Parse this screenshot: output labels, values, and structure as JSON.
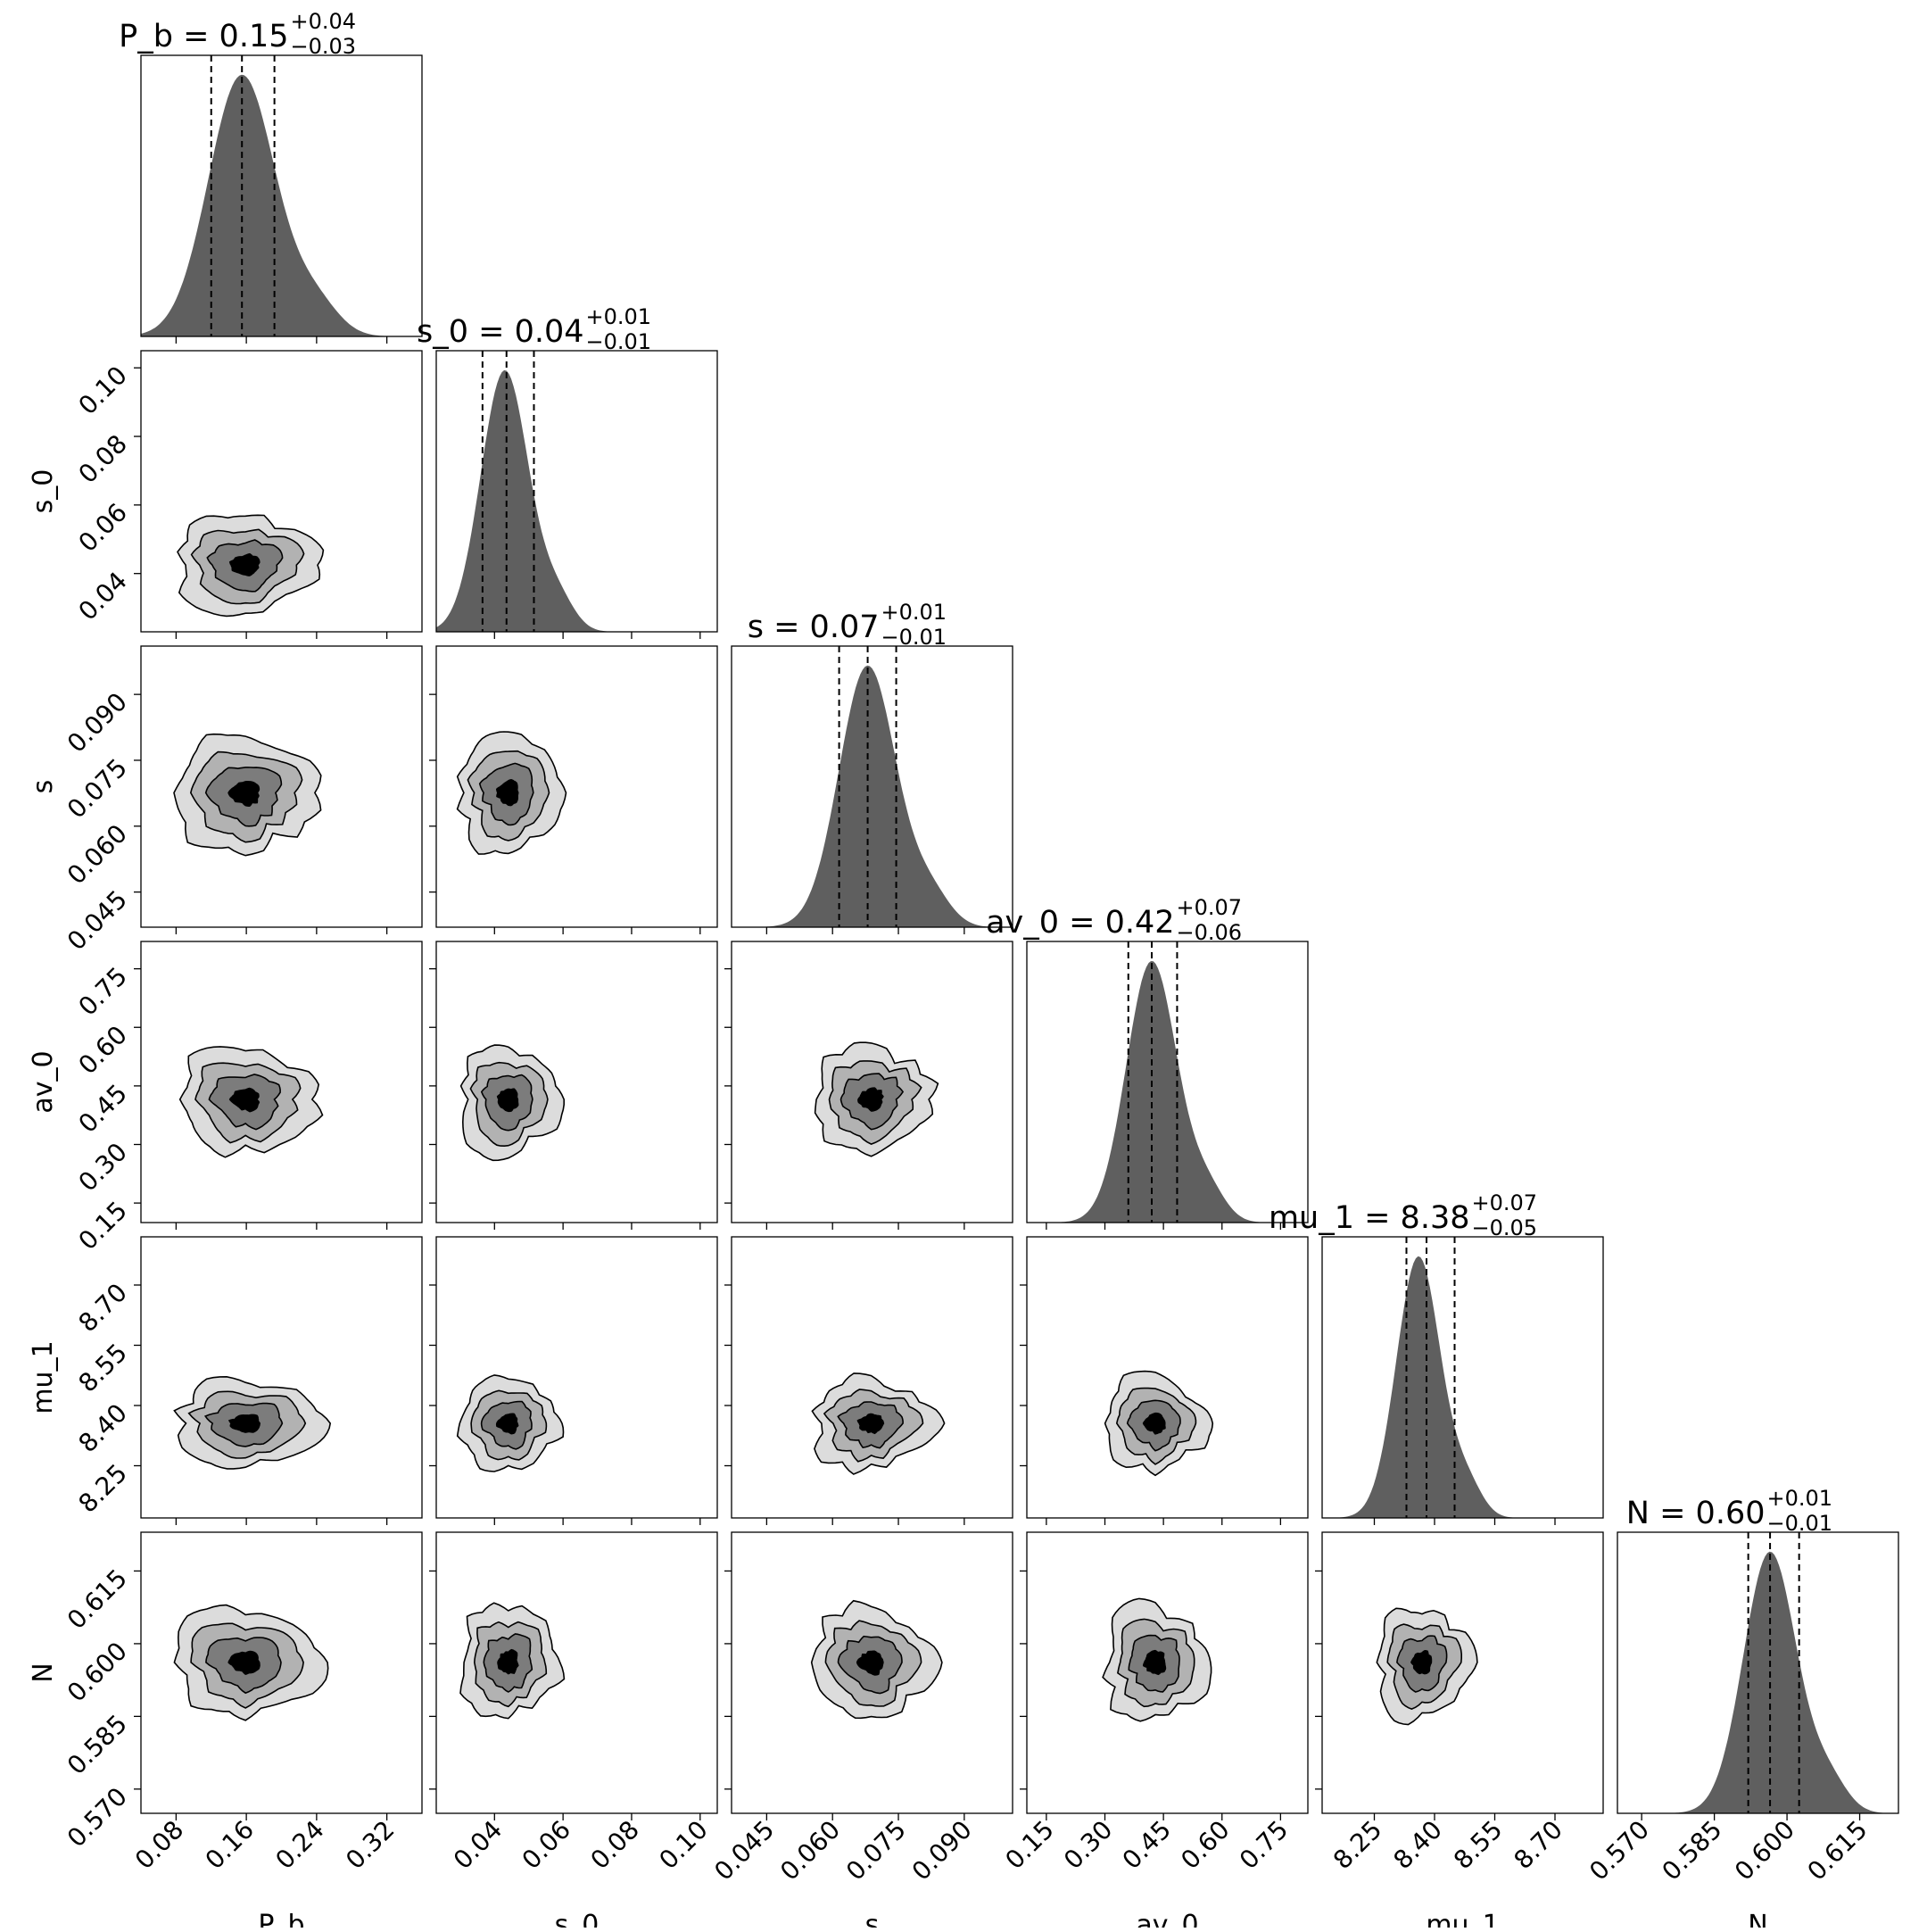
{
  "chart_data": {
    "type": "corner",
    "parameters": [
      {
        "name": "P_b",
        "axis_label": "P_b",
        "median": "0.15",
        "plus": "+0.04",
        "minus": "−0.03",
        "range": [
          0.04,
          0.36
        ],
        "ticks": [
          "0.08",
          "0.16",
          "0.24",
          "0.32"
        ],
        "hist_peak": 0.155,
        "hist_sigma": 0.038,
        "q16": 0.12,
        "q50": 0.155,
        "q84": 0.192
      },
      {
        "name": "s_0",
        "axis_label": "s_0",
        "median": "0.04",
        "plus": "+0.01",
        "minus": "−0.01",
        "range": [
          0.023,
          0.105
        ],
        "ticks": [
          "0.04",
          "0.06",
          "0.08",
          "0.10"
        ],
        "hist_peak": 0.043,
        "hist_sigma": 0.007,
        "q16": 0.0365,
        "q50": 0.0435,
        "q84": 0.0515
      },
      {
        "name": "s",
        "axis_label": "s",
        "median": "0.07",
        "plus": "+0.01",
        "minus": "−0.01",
        "range": [
          0.037,
          0.101
        ],
        "ticks": [
          "0.045",
          "0.060",
          "0.075",
          "0.090"
        ],
        "hist_peak": 0.068,
        "hist_sigma": 0.0065,
        "q16": 0.0615,
        "q50": 0.068,
        "q84": 0.0745
      },
      {
        "name": "av_0",
        "axis_label": "av_0",
        "median": "0.42",
        "plus": "+0.07",
        "minus": "−0.06",
        "range": [
          0.1,
          0.82
        ],
        "ticks": [
          "0.15",
          "0.30",
          "0.45",
          "0.60",
          "0.75"
        ],
        "hist_peak": 0.42,
        "hist_sigma": 0.065,
        "q16": 0.36,
        "q50": 0.42,
        "q84": 0.485
      },
      {
        "name": "mu_1",
        "axis_label": "mu_1",
        "median": "8.38",
        "plus": "+0.07",
        "minus": "−0.05",
        "range": [
          8.12,
          8.82
        ],
        "ticks": [
          "8.25",
          "8.40",
          "8.55",
          "8.70"
        ],
        "hist_peak": 8.36,
        "hist_sigma": 0.055,
        "q16": 8.33,
        "q50": 8.38,
        "q84": 8.45
      },
      {
        "name": "N",
        "axis_label": "N",
        "median": "0.60",
        "plus": "+0.01",
        "minus": "−0.01",
        "range": [
          0.565,
          0.623
        ],
        "ticks": [
          "0.570",
          "0.585",
          "0.600",
          "0.615"
        ],
        "hist_peak": 0.5965,
        "hist_sigma": 0.0055,
        "q16": 0.592,
        "q50": 0.5965,
        "q84": 0.6025
      }
    ],
    "titles": [
      {
        "base": "P_b = 0.15",
        "sup": "+0.04",
        "sub": "−0.03"
      },
      {
        "base": "s_0 = 0.04",
        "sup": "+0.01",
        "sub": "−0.01"
      },
      {
        "base": "s = 0.07",
        "sup": "+0.01",
        "sub": "−0.01"
      },
      {
        "base": "av_0 = 0.42",
        "sup": "+0.07",
        "sub": "−0.06"
      },
      {
        "base": "mu_1 = 8.38",
        "sup": "+0.07",
        "sub": "−0.05"
      },
      {
        "base": "N = 0.60",
        "sup": "+0.01",
        "sub": "−0.01"
      }
    ],
    "contour_levels": [
      "0.5σ",
      "1σ",
      "1.5σ",
      "2σ"
    ],
    "colors": {
      "hist_fill": "#5f5f5f",
      "contour_fills": [
        "#dcdcdc",
        "#b2b2b2",
        "#7c7c7c",
        "#000000"
      ],
      "quantile_line": "#000000",
      "frame": "#000000"
    }
  }
}
